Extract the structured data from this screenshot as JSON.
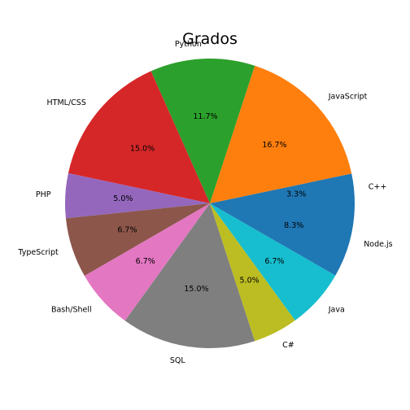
{
  "chart_data": {
    "type": "pie",
    "title": "Grados",
    "start_angle_deg": 0,
    "direction": "counterclockwise",
    "slices": [
      {
        "label": "C++",
        "value": 3.3,
        "pct_label": "3.3%",
        "color": "#1f77b4"
      },
      {
        "label": "JavaScript",
        "value": 16.7,
        "pct_label": "16.7%",
        "color": "#ff7f0e"
      },
      {
        "label": "Python",
        "value": 11.7,
        "pct_label": "11.7%",
        "color": "#2ca02c"
      },
      {
        "label": "HTML/CSS",
        "value": 15.0,
        "pct_label": "15.0%",
        "color": "#d62728"
      },
      {
        "label": "PHP",
        "value": 5.0,
        "pct_label": "5.0%",
        "color": "#9467bd"
      },
      {
        "label": "TypeScript",
        "value": 6.7,
        "pct_label": "6.7%",
        "color": "#8c564b"
      },
      {
        "label": "Bash/Shell",
        "value": 6.7,
        "pct_label": "6.7%",
        "color": "#e377c2"
      },
      {
        "label": "SQL",
        "value": 15.0,
        "pct_label": "15.0%",
        "color": "#7f7f7f"
      },
      {
        "label": "C#",
        "value": 5.0,
        "pct_label": "5.0%",
        "color": "#bcbd22"
      },
      {
        "label": "Java",
        "value": 6.7,
        "pct_label": "6.7%",
        "color": "#17becf"
      },
      {
        "label": "Node.js",
        "value": 8.3,
        "pct_label": "8.3%",
        "color": "#1f77b4"
      }
    ]
  }
}
